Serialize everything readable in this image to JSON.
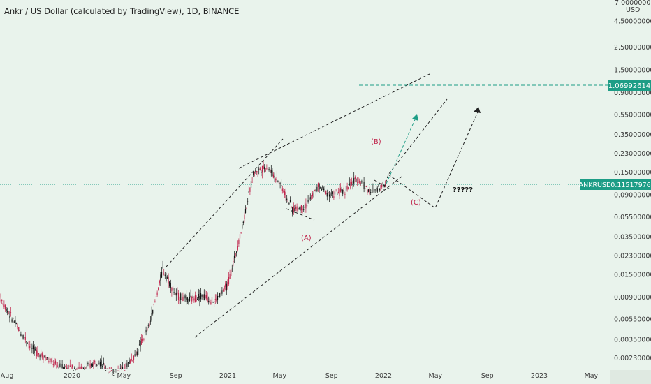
{
  "header": {
    "title": "Ankr / US Dollar (calculated by TradingView), 1D, BINANCE"
  },
  "axis": {
    "currency": "USD",
    "top_label": "7.00000000"
  },
  "price_labels": {
    "target": "1.06992614",
    "symbol": "ANKRUSD",
    "current": "0.11517976"
  },
  "annotations": {
    "wave_a": "(A)",
    "wave_b": "(B)",
    "wave_c": "(C)",
    "question": "?????"
  },
  "colors": {
    "background": "#e9f3ec",
    "up_candle": "#111111",
    "down_candle": "#c0244b",
    "target_line": "#1d9d86",
    "price_line": "#1d9d86",
    "annotation": "#c0244b"
  },
  "chart_data": {
    "type": "candlestick",
    "y_scale": "log",
    "ylim": [
      0.0018,
      7.0
    ],
    "y_ticks": [
      "4.50000000",
      "2.50000000",
      "1.50000000",
      "0.90000000",
      "0.55000000",
      "0.35000000",
      "0.23000000",
      "0.15000000",
      "0.09000000",
      "0.05500000",
      "0.03500000",
      "0.02300000",
      "0.01500000",
      "0.00900000",
      "0.00550000",
      "0.00350000",
      "0.00230000"
    ],
    "x_ticks": [
      "Aug",
      "2020",
      "May",
      "Sep",
      "2021",
      "May",
      "Sep",
      "2022",
      "May",
      "Sep",
      "2023",
      "May"
    ],
    "x_range": [
      "2019-08",
      "2023-06"
    ],
    "price_series": [
      {
        "date": "2019-07",
        "price": 0.012
      },
      {
        "date": "2019-08",
        "price": 0.0068
      },
      {
        "date": "2019-09",
        "price": 0.0042
      },
      {
        "date": "2019-10",
        "price": 0.0028
      },
      {
        "date": "2019-11",
        "price": 0.0023
      },
      {
        "date": "2019-12",
        "price": 0.0019
      },
      {
        "date": "2020-02",
        "price": 0.0018
      },
      {
        "date": "2020-03",
        "price": 0.0022
      },
      {
        "date": "2020-04",
        "price": 0.0016
      },
      {
        "date": "2020-05",
        "price": 0.0018
      },
      {
        "date": "2020-06",
        "price": 0.0026
      },
      {
        "date": "2020-07",
        "price": 0.005
      },
      {
        "date": "2020-08",
        "price": 0.017
      },
      {
        "date": "2020-09",
        "price": 0.0095
      },
      {
        "date": "2020-10",
        "price": 0.0085
      },
      {
        "date": "2020-11",
        "price": 0.0095
      },
      {
        "date": "2020-12",
        "price": 0.0082
      },
      {
        "date": "2021-01",
        "price": 0.012
      },
      {
        "date": "2021-02",
        "price": 0.038
      },
      {
        "date": "2021-03",
        "price": 0.15
      },
      {
        "date": "2021-04",
        "price": 0.17
      },
      {
        "date": "2021-05",
        "price": 0.12
      },
      {
        "date": "2021-06",
        "price": 0.065
      },
      {
        "date": "2021-07",
        "price": 0.07
      },
      {
        "date": "2021-08",
        "price": 0.11
      },
      {
        "date": "2021-09",
        "price": 0.09
      },
      {
        "date": "2021-10",
        "price": 0.1
      },
      {
        "date": "2021-11",
        "price": 0.13
      },
      {
        "date": "2021-12",
        "price": 0.095
      },
      {
        "date": "2022-01",
        "price": 0.115
      }
    ],
    "horizontal_lines": [
      {
        "label": "1.06992614",
        "value": 1.06992614,
        "style": "dashed"
      },
      {
        "label": "0.11517976",
        "value": 0.11517976,
        "style": "dotted"
      }
    ]
  }
}
